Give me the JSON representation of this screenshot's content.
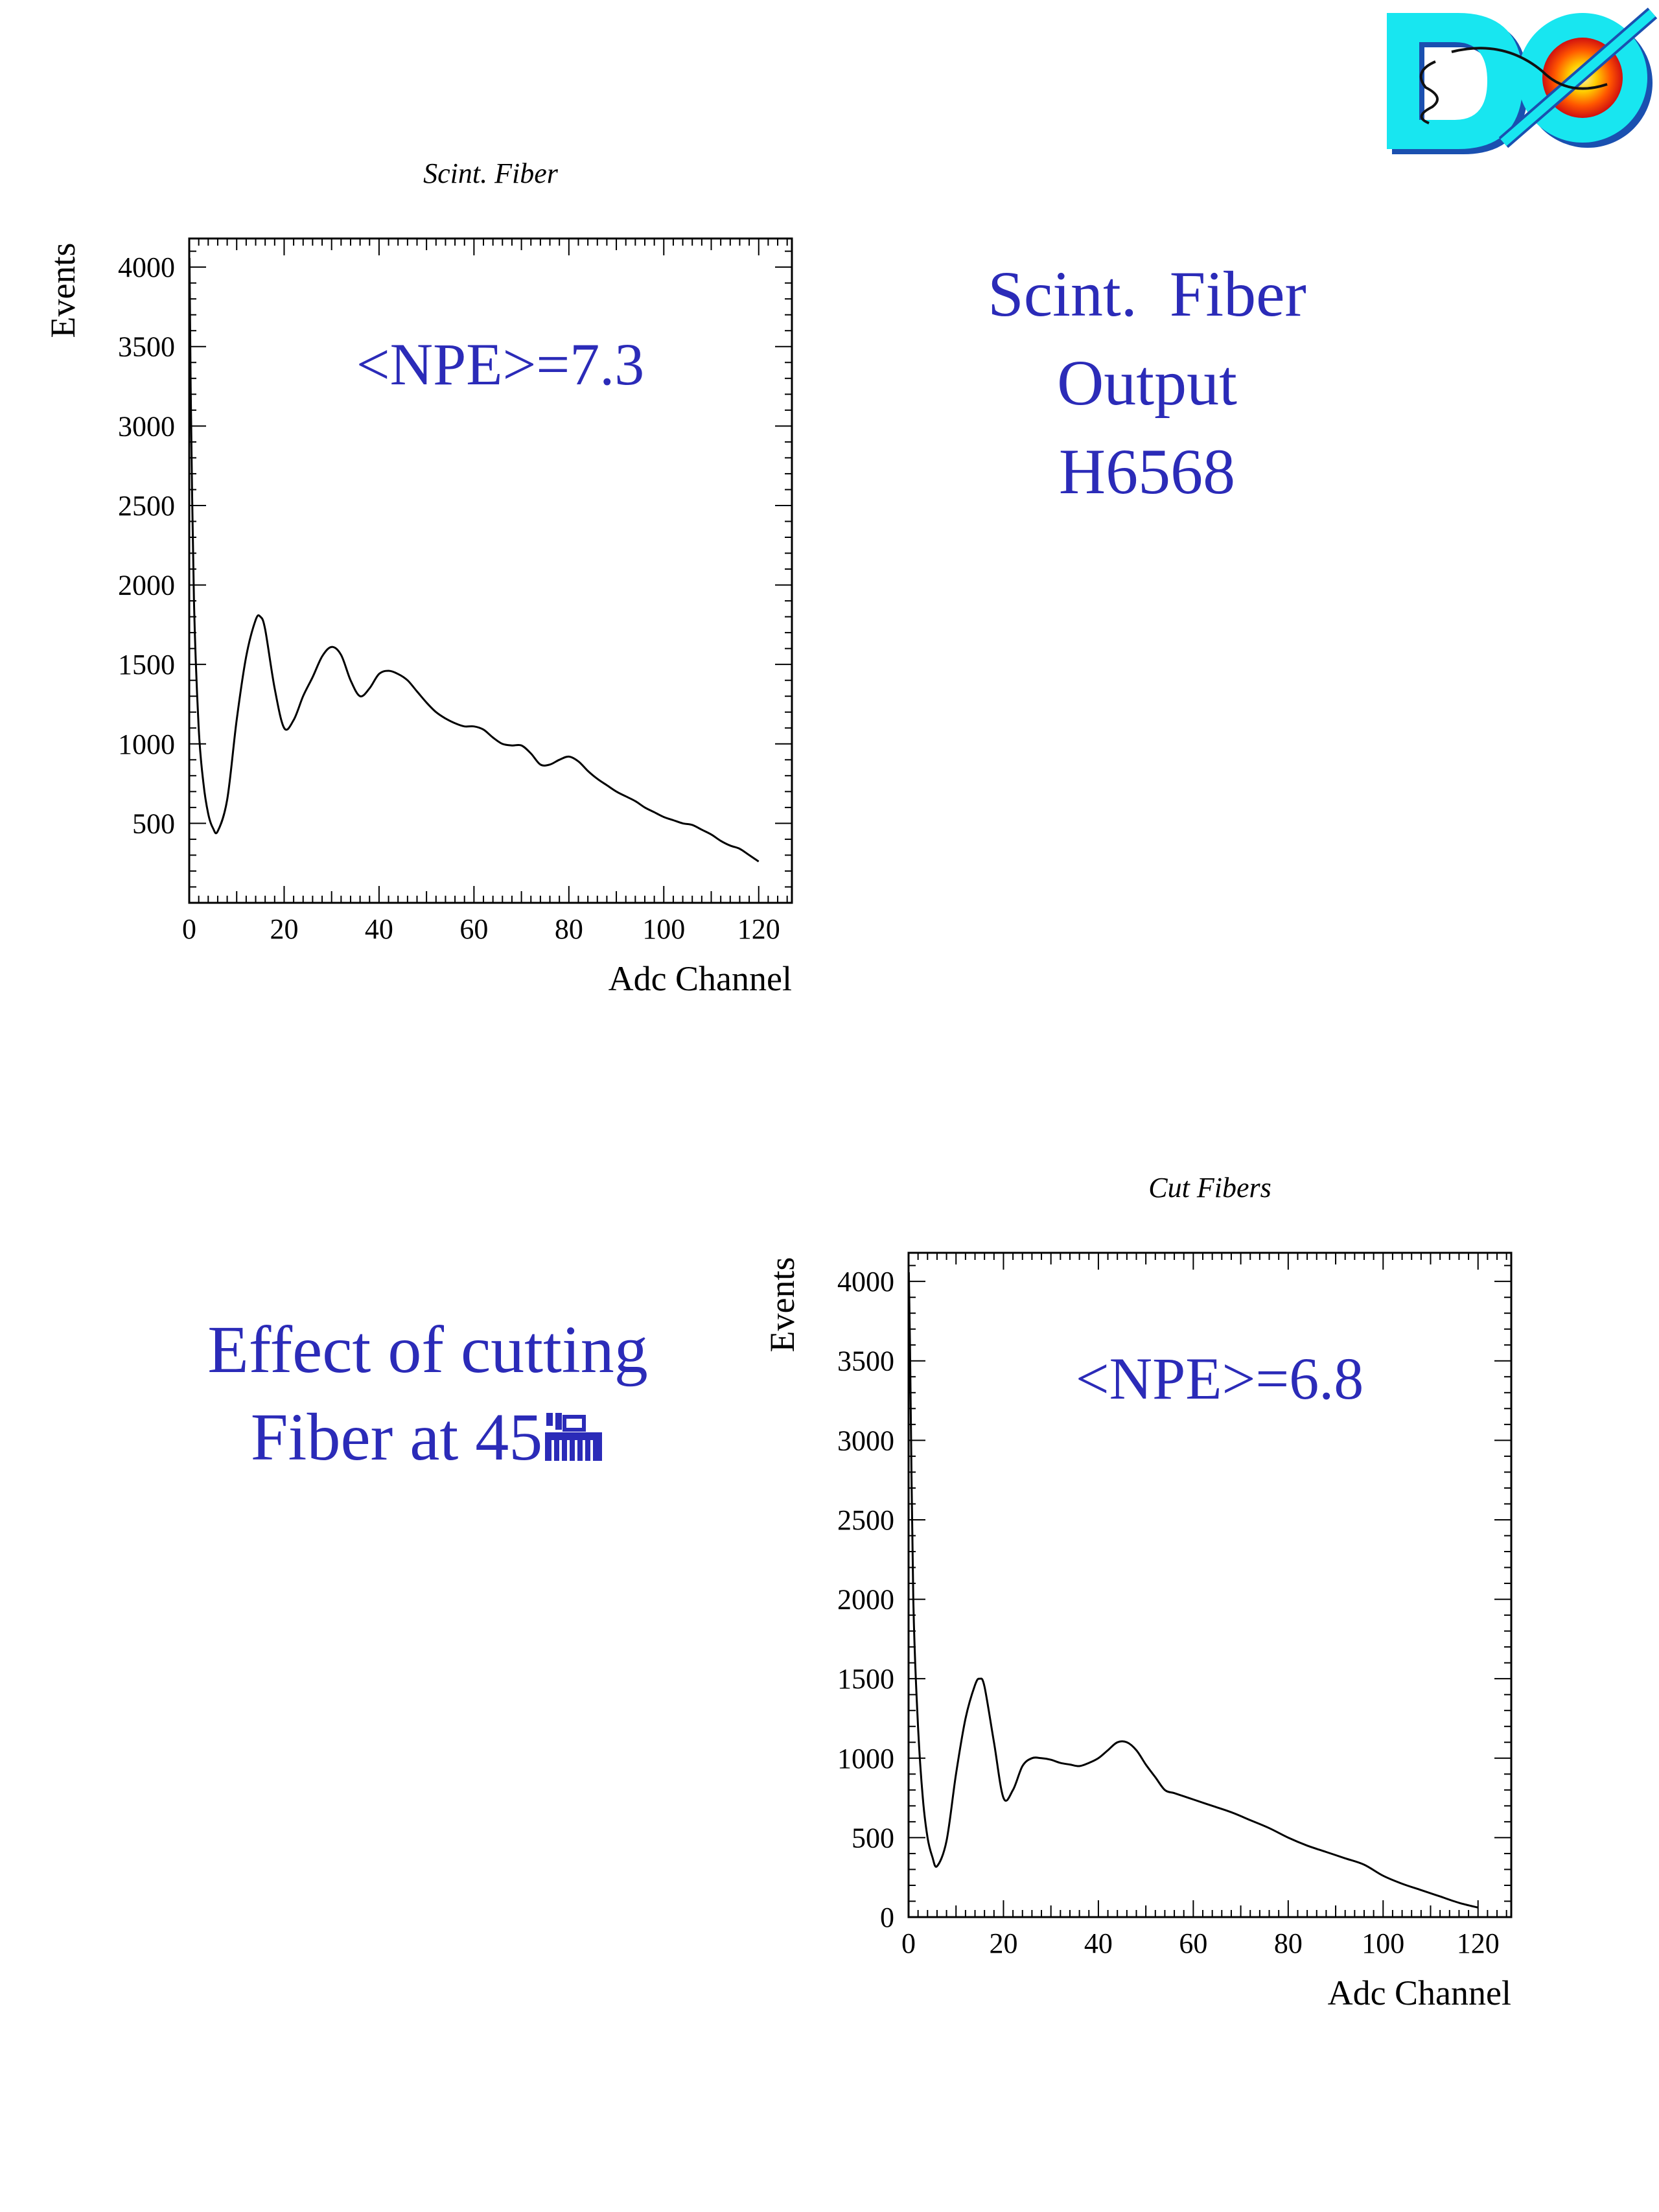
{
  "logo": {
    "text": "DØ"
  },
  "right_caption": {
    "lines": [
      "Scint.  Fiber",
      "Output",
      "H6568"
    ],
    "color": "#2b2bb8"
  },
  "left_caption": {
    "lines": [
      "Effect of cutting",
      "Fiber at 45"
    ],
    "color": "#2b2bb8"
  },
  "chart_data": [
    {
      "type": "line",
      "title": "Scint. Fiber",
      "xlabel": "Adc Channel",
      "ylabel": "Events",
      "annotation": "<NPE>=7.3",
      "xlim": [
        0,
        127
      ],
      "ylim": [
        0,
        4180
      ],
      "xticks": [
        0,
        20,
        40,
        60,
        80,
        100,
        120
      ],
      "yticks": [
        500,
        1000,
        1500,
        2000,
        2500,
        3000,
        3500,
        4000
      ],
      "series": [
        {
          "x": [
            0.3,
            1,
            2,
            3,
            4,
            5,
            6,
            8,
            10,
            12,
            14,
            15,
            16,
            18,
            20,
            22,
            24,
            26,
            28,
            30,
            32,
            34,
            36,
            38,
            40,
            42,
            44,
            46,
            48,
            50,
            52,
            54,
            56,
            58,
            60,
            62,
            64,
            66,
            68,
            70,
            72,
            74,
            76,
            78,
            80,
            82,
            84,
            86,
            88,
            90,
            92,
            94,
            96,
            98,
            100,
            102,
            104,
            106,
            108,
            110,
            112,
            114,
            116,
            118,
            120
          ],
          "y": [
            3250,
            1900,
            1100,
            750,
            560,
            470,
            450,
            650,
            1150,
            1550,
            1780,
            1800,
            1720,
            1350,
            1100,
            1150,
            1300,
            1420,
            1550,
            1610,
            1560,
            1400,
            1300,
            1350,
            1440,
            1460,
            1440,
            1400,
            1330,
            1260,
            1200,
            1160,
            1130,
            1110,
            1110,
            1090,
            1040,
            1000,
            990,
            990,
            940,
            870,
            870,
            900,
            920,
            890,
            830,
            780,
            740,
            700,
            670,
            640,
            600,
            570,
            540,
            520,
            500,
            490,
            460,
            430,
            390,
            360,
            340,
            300,
            260
          ]
        }
      ]
    },
    {
      "type": "line",
      "title": "Cut Fibers",
      "xlabel": "Adc Channel",
      "ylabel": "Events",
      "annotation": "<NPE>=6.8",
      "xlim": [
        0,
        127
      ],
      "ylim": [
        0,
        4180
      ],
      "xticks": [
        0,
        20,
        40,
        60,
        80,
        100,
        120
      ],
      "yticks": [
        0,
        500,
        1000,
        1500,
        2000,
        2500,
        3000,
        3500,
        4000
      ],
      "series": [
        {
          "x": [
            0.3,
            1,
            2,
            3,
            4,
            5,
            6,
            8,
            10,
            12,
            14,
            15,
            16,
            18,
            20,
            22,
            24,
            26,
            28,
            30,
            32,
            34,
            36,
            38,
            40,
            42,
            44,
            46,
            48,
            50,
            52,
            54,
            56,
            58,
            60,
            64,
            68,
            72,
            76,
            80,
            84,
            88,
            92,
            96,
            100,
            104,
            108,
            112,
            116,
            120
          ],
          "y": [
            3600,
            2000,
            1200,
            750,
            500,
            380,
            320,
            480,
            900,
            1250,
            1460,
            1500,
            1450,
            1100,
            750,
            800,
            950,
            1000,
            1000,
            990,
            970,
            960,
            950,
            970,
            1000,
            1050,
            1100,
            1100,
            1050,
            960,
            880,
            800,
            780,
            760,
            740,
            700,
            660,
            610,
            560,
            500,
            450,
            410,
            370,
            330,
            260,
            210,
            170,
            130,
            90,
            60
          ]
        }
      ]
    }
  ]
}
